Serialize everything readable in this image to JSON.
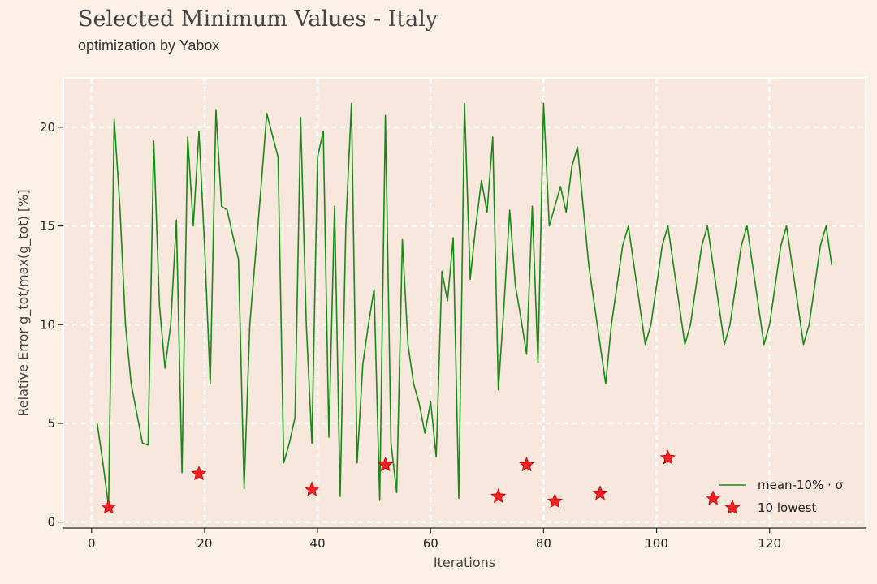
{
  "chart_data": {
    "type": "line",
    "title": "Selected Minimum Values - Italy",
    "subtitle": "optimization by Yabox",
    "xlabel": "Iterations",
    "ylabel": "Relative Error g_tot/max(g_tot) [%]",
    "xlim": [
      -5,
      137
    ],
    "ylim": [
      -0.3,
      22.5
    ],
    "xticks": [
      0,
      20,
      40,
      60,
      80,
      100,
      120
    ],
    "yticks": [
      0,
      5,
      10,
      15,
      20
    ],
    "grid": true,
    "legend_position": "lower-right",
    "colors": {
      "line": "#168a16",
      "marker": "#ee2222",
      "background": "#fdf0e6",
      "plot_bg": "#f8e7dc",
      "grid": "#ffffff"
    },
    "series": [
      {
        "name": "mean-10% · σ",
        "kind": "line",
        "x": [
          1,
          2,
          3,
          4,
          5,
          6,
          7,
          8,
          9,
          10,
          11,
          12,
          13,
          14,
          15,
          16,
          17,
          18,
          19,
          20,
          21,
          22,
          23,
          24,
          25,
          26,
          27,
          28,
          29,
          30,
          31,
          32,
          33,
          34,
          35,
          36,
          37,
          38,
          39,
          40,
          41,
          42,
          43,
          44,
          45,
          46,
          47,
          48,
          49,
          50,
          51,
          52,
          53,
          54,
          55,
          56,
          57,
          58,
          59,
          60,
          61,
          62,
          63,
          64,
          65,
          66,
          67,
          68,
          69,
          70,
          71,
          72,
          73,
          74,
          75,
          76,
          77,
          78,
          79,
          80,
          81,
          82,
          83,
          84,
          85,
          86,
          87,
          88,
          89,
          90,
          91,
          92,
          93,
          94,
          95,
          96,
          97,
          98,
          99,
          100,
          101,
          102,
          103,
          104,
          105,
          106,
          107,
          108,
          109,
          110,
          111,
          112,
          113,
          114,
          115,
          116,
          117,
          118,
          119,
          120,
          121,
          122,
          123,
          124,
          125,
          126,
          127,
          128,
          129,
          130,
          131
        ],
        "y": [
          5.0,
          3.0,
          0.8,
          20.4,
          16.0,
          10.0,
          7.0,
          5.5,
          4.0,
          3.9,
          19.3,
          11.0,
          7.8,
          10.0,
          15.3,
          2.5,
          19.5,
          15.0,
          19.8,
          14.0,
          7.0,
          20.9,
          16.0,
          15.8,
          14.5,
          13.3,
          1.7,
          10.0,
          13.5,
          17.0,
          20.7,
          19.6,
          18.5,
          3.0,
          4.0,
          5.3,
          20.5,
          10.0,
          4.0,
          18.5,
          19.8,
          4.3,
          16.0,
          1.3,
          15.0,
          21.2,
          3.0,
          8.0,
          10.0,
          11.8,
          1.1,
          20.6,
          4.0,
          1.5,
          14.3,
          9.0,
          7.0,
          6.0,
          4.5,
          6.1,
          3.3,
          12.7,
          11.2,
          14.4,
          1.2,
          21.2,
          12.3,
          15.0,
          17.3,
          15.7,
          19.5,
          6.7,
          11.0,
          15.8,
          12.0,
          10.3,
          8.5,
          16.0,
          8.1,
          21.2,
          15.0,
          16.0,
          17.0,
          15.7,
          18.0,
          19.0,
          16.0,
          13.0,
          11.0,
          9.0,
          7.0,
          10.0,
          12.0,
          14.0,
          15.0,
          13.0,
          11.0,
          9.0,
          10.0,
          12.0,
          14.0,
          15.0,
          13.0,
          11.0,
          9.0,
          10.0,
          12.0,
          14.0,
          15.0,
          13.0,
          11.0,
          9.0,
          10.0,
          12.0,
          14.0,
          15.0,
          13.0,
          11.0,
          9.0,
          10.0,
          12.0,
          14.0,
          15.0,
          13.0,
          11.0,
          9.0,
          10.0,
          12.0,
          14.0,
          15.0,
          13.0
        ]
      },
      {
        "name": "10 lowest",
        "kind": "scatter",
        "x": [
          3,
          19,
          39,
          52,
          72,
          77,
          82,
          90,
          102,
          110
        ],
        "y": [
          0.75,
          2.45,
          1.65,
          2.9,
          1.3,
          2.9,
          1.05,
          1.45,
          3.25,
          1.2
        ]
      }
    ]
  }
}
